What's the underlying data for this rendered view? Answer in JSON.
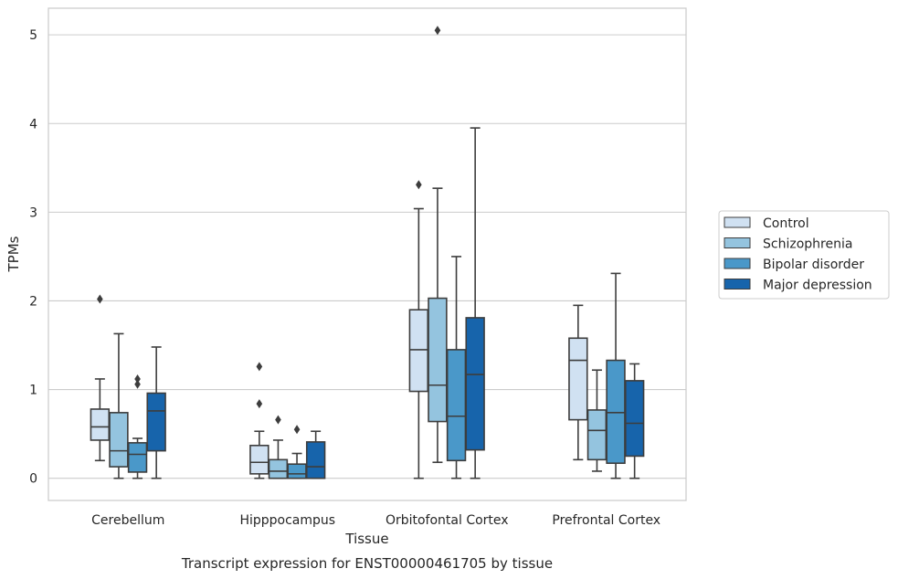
{
  "chart_data": {
    "type": "box",
    "xlabel": "Tissue",
    "ylabel": "TPMs",
    "caption": "Transcript expression for ENST00000461705 by tissue",
    "ylim": [
      -0.25,
      5.3
    ],
    "yticks": [
      0,
      1,
      2,
      3,
      4,
      5
    ],
    "grid": "horizontal",
    "legend_position": "right",
    "categories": [
      "Cerebellum",
      "Hipppocampus",
      "Orbitofontal Cortex",
      "Prefrontal Cortex"
    ],
    "series": [
      {
        "name": "Control",
        "color": "#d0e1f2",
        "boxes": [
          {
            "whislo": 0.2,
            "q1": 0.43,
            "med": 0.58,
            "q3": 0.78,
            "whishi": 1.12,
            "fliers": [
              2.02
            ]
          },
          {
            "whislo": 0.0,
            "q1": 0.05,
            "med": 0.18,
            "q3": 0.37,
            "whishi": 0.53,
            "fliers": [
              0.84,
              1.26
            ]
          },
          {
            "whislo": 0.0,
            "q1": 0.98,
            "med": 1.45,
            "q3": 1.9,
            "whishi": 3.04,
            "fliers": [
              3.31
            ]
          },
          {
            "whislo": 0.21,
            "q1": 0.66,
            "med": 1.33,
            "q3": 1.58,
            "whishi": 1.95,
            "fliers": []
          }
        ]
      },
      {
        "name": "Schizophrenia",
        "color": "#94c4df",
        "boxes": [
          {
            "whislo": 0.0,
            "q1": 0.13,
            "med": 0.31,
            "q3": 0.74,
            "whishi": 1.63,
            "fliers": []
          },
          {
            "whislo": 0.0,
            "q1": 0.0,
            "med": 0.08,
            "q3": 0.21,
            "whishi": 0.43,
            "fliers": [
              0.66
            ]
          },
          {
            "whislo": 0.18,
            "q1": 0.64,
            "med": 1.05,
            "q3": 2.03,
            "whishi": 3.27,
            "fliers": [
              5.05
            ]
          },
          {
            "whislo": 0.08,
            "q1": 0.21,
            "med": 0.54,
            "q3": 0.77,
            "whishi": 1.22,
            "fliers": []
          }
        ]
      },
      {
        "name": "Bipolar disorder",
        "color": "#4a98c9",
        "boxes": [
          {
            "whislo": 0.0,
            "q1": 0.07,
            "med": 0.27,
            "q3": 0.4,
            "whishi": 0.45,
            "fliers": [
              1.06,
              1.12
            ]
          },
          {
            "whislo": 0.0,
            "q1": 0.0,
            "med": 0.05,
            "q3": 0.16,
            "whishi": 0.28,
            "fliers": [
              0.55
            ]
          },
          {
            "whislo": 0.0,
            "q1": 0.2,
            "med": 0.7,
            "q3": 1.45,
            "whishi": 2.5,
            "fliers": []
          },
          {
            "whislo": 0.0,
            "q1": 0.17,
            "med": 0.74,
            "q3": 1.33,
            "whishi": 2.31,
            "fliers": []
          }
        ]
      },
      {
        "name": "Major depression",
        "color": "#1764ab",
        "boxes": [
          {
            "whislo": 0.0,
            "q1": 0.31,
            "med": 0.76,
            "q3": 0.96,
            "whishi": 1.48,
            "fliers": []
          },
          {
            "whislo": 0.0,
            "q1": 0.0,
            "med": 0.13,
            "q3": 0.41,
            "whishi": 0.53,
            "fliers": []
          },
          {
            "whislo": 0.0,
            "q1": 0.32,
            "med": 1.17,
            "q3": 1.81,
            "whishi": 3.95,
            "fliers": []
          },
          {
            "whislo": 0.0,
            "q1": 0.25,
            "med": 0.62,
            "q3": 1.1,
            "whishi": 1.29,
            "fliers": []
          }
        ]
      }
    ]
  }
}
